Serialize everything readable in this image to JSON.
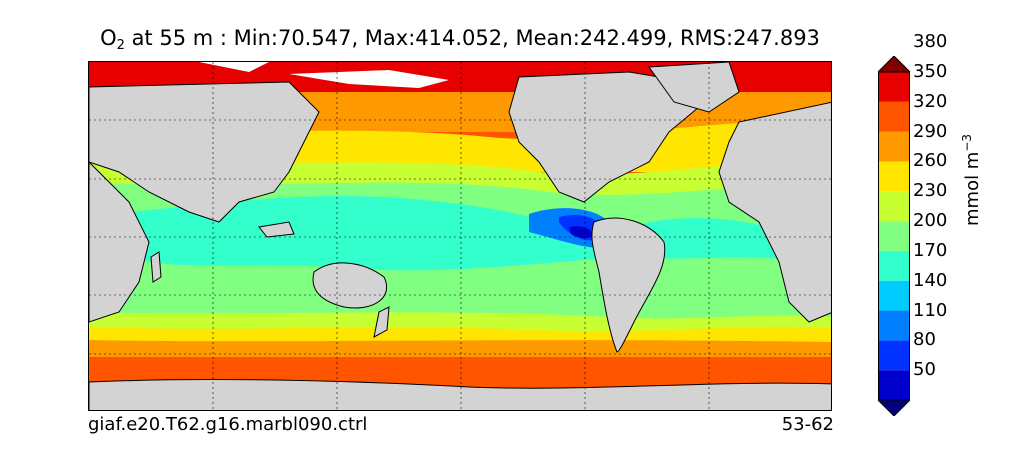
{
  "title": {
    "variable": "O",
    "subscript": "2",
    "rest": " at 55 m : Min:70.547, Max:414.052, Mean:242.499, RMS:247.893"
  },
  "footer": {
    "case_name": "giaf.e20.T62.g16.marbl090.ctrl",
    "years": "53-62"
  },
  "colorbar": {
    "unit_main": "mmol m",
    "unit_exp": "−3",
    "levels": [
      "50",
      "80",
      "110",
      "140",
      "170",
      "200",
      "230",
      "260",
      "290",
      "320",
      "350",
      "380"
    ],
    "colors": [
      "#00007f",
      "#0000cc",
      "#0033ff",
      "#0080ff",
      "#00ccff",
      "#33ffcc",
      "#80ff80",
      "#c8ff33",
      "#ffe600",
      "#ff9900",
      "#ff5500",
      "#e60000",
      "#800000"
    ]
  },
  "colors": {
    "land": "#d3d3d3",
    "sea_ice": "#ffffff"
  }
}
